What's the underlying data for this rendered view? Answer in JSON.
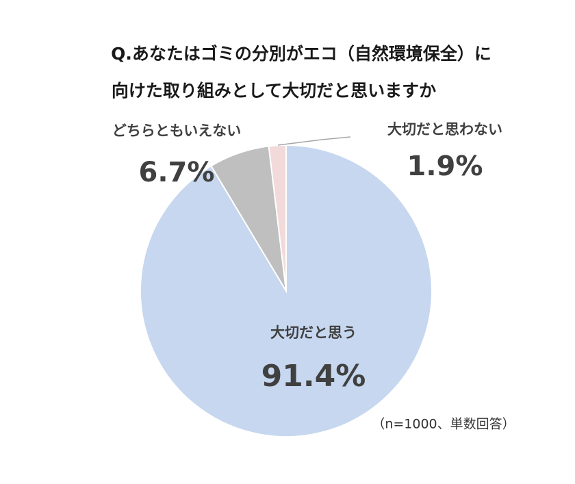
{
  "chart_data": {
    "type": "pie",
    "title": [
      "Q.あなたはゴミの分別がエコ（自然環境保全）に",
      "向けた取り組みとして大切だと思いますか"
    ],
    "categories": [
      "大切だと思う",
      "どちらともいえない",
      "大切だと思わない"
    ],
    "values": [
      91.4,
      6.7,
      1.9
    ],
    "value_labels": [
      "91.4%",
      "6.7%",
      "1.9%"
    ],
    "colors": [
      "#c6d7ef",
      "#bfbfbf",
      "#f2d9da"
    ],
    "note": "（n=1000、単数回答）"
  }
}
